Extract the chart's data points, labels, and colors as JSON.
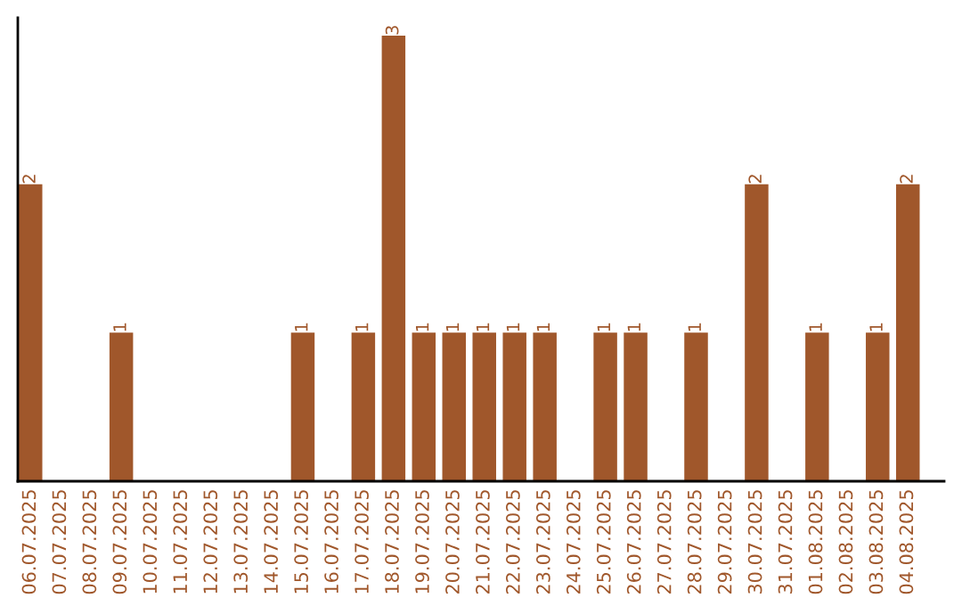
{
  "chart_data": {
    "type": "bar",
    "categories": [
      "06.07.2025",
      "07.07.2025",
      "08.07.2025",
      "09.07.2025",
      "10.07.2025",
      "11.07.2025",
      "12.07.2025",
      "13.07.2025",
      "14.07.2025",
      "15.07.2025",
      "16.07.2025",
      "17.07.2025",
      "18.07.2025",
      "19.07.2025",
      "20.07.2025",
      "21.07.2025",
      "22.07.2025",
      "23.07.2025",
      "24.07.2025",
      "25.07.2025",
      "26.07.2025",
      "27.07.2025",
      "28.07.2025",
      "29.07.2025",
      "30.07.2025",
      "31.07.2025",
      "01.08.2025",
      "02.08.2025",
      "03.08.2025",
      "04.08.2025"
    ],
    "values": [
      2,
      0,
      0,
      1,
      0,
      0,
      0,
      0,
      0,
      1,
      0,
      1,
      3,
      1,
      1,
      1,
      1,
      1,
      0,
      1,
      1,
      0,
      1,
      0,
      2,
      0,
      1,
      0,
      1,
      2
    ],
    "value_labels": [
      "2",
      null,
      null,
      "1",
      null,
      null,
      null,
      null,
      null,
      "1",
      null,
      "1",
      "3",
      "1",
      "1",
      "1",
      "1",
      "1",
      null,
      "1",
      "1",
      null,
      "1",
      null,
      "2",
      null,
      "1",
      null,
      "1",
      "2"
    ],
    "color": "#a0572b",
    "ylim": [
      0,
      3.12
    ],
    "tick_labels": "x",
    "grid": false,
    "legend": false
  }
}
